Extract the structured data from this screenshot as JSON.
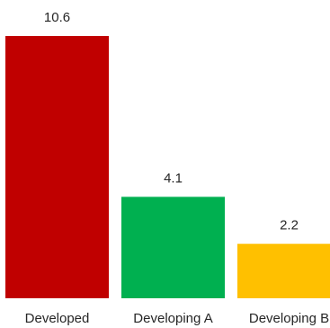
{
  "chart_data": {
    "type": "bar",
    "categories": [
      "Developed",
      "Developing A",
      "Developing B"
    ],
    "values": [
      10.6,
      4.1,
      2.2
    ],
    "value_labels": [
      "10.6",
      "4.1",
      "2.2"
    ],
    "colors": [
      "#c00000",
      "#00b050",
      "#ffc000"
    ],
    "title": "",
    "xlabel": "",
    "ylabel": "",
    "ylim": [
      0,
      10.6
    ],
    "grid": false,
    "legend": "none"
  }
}
